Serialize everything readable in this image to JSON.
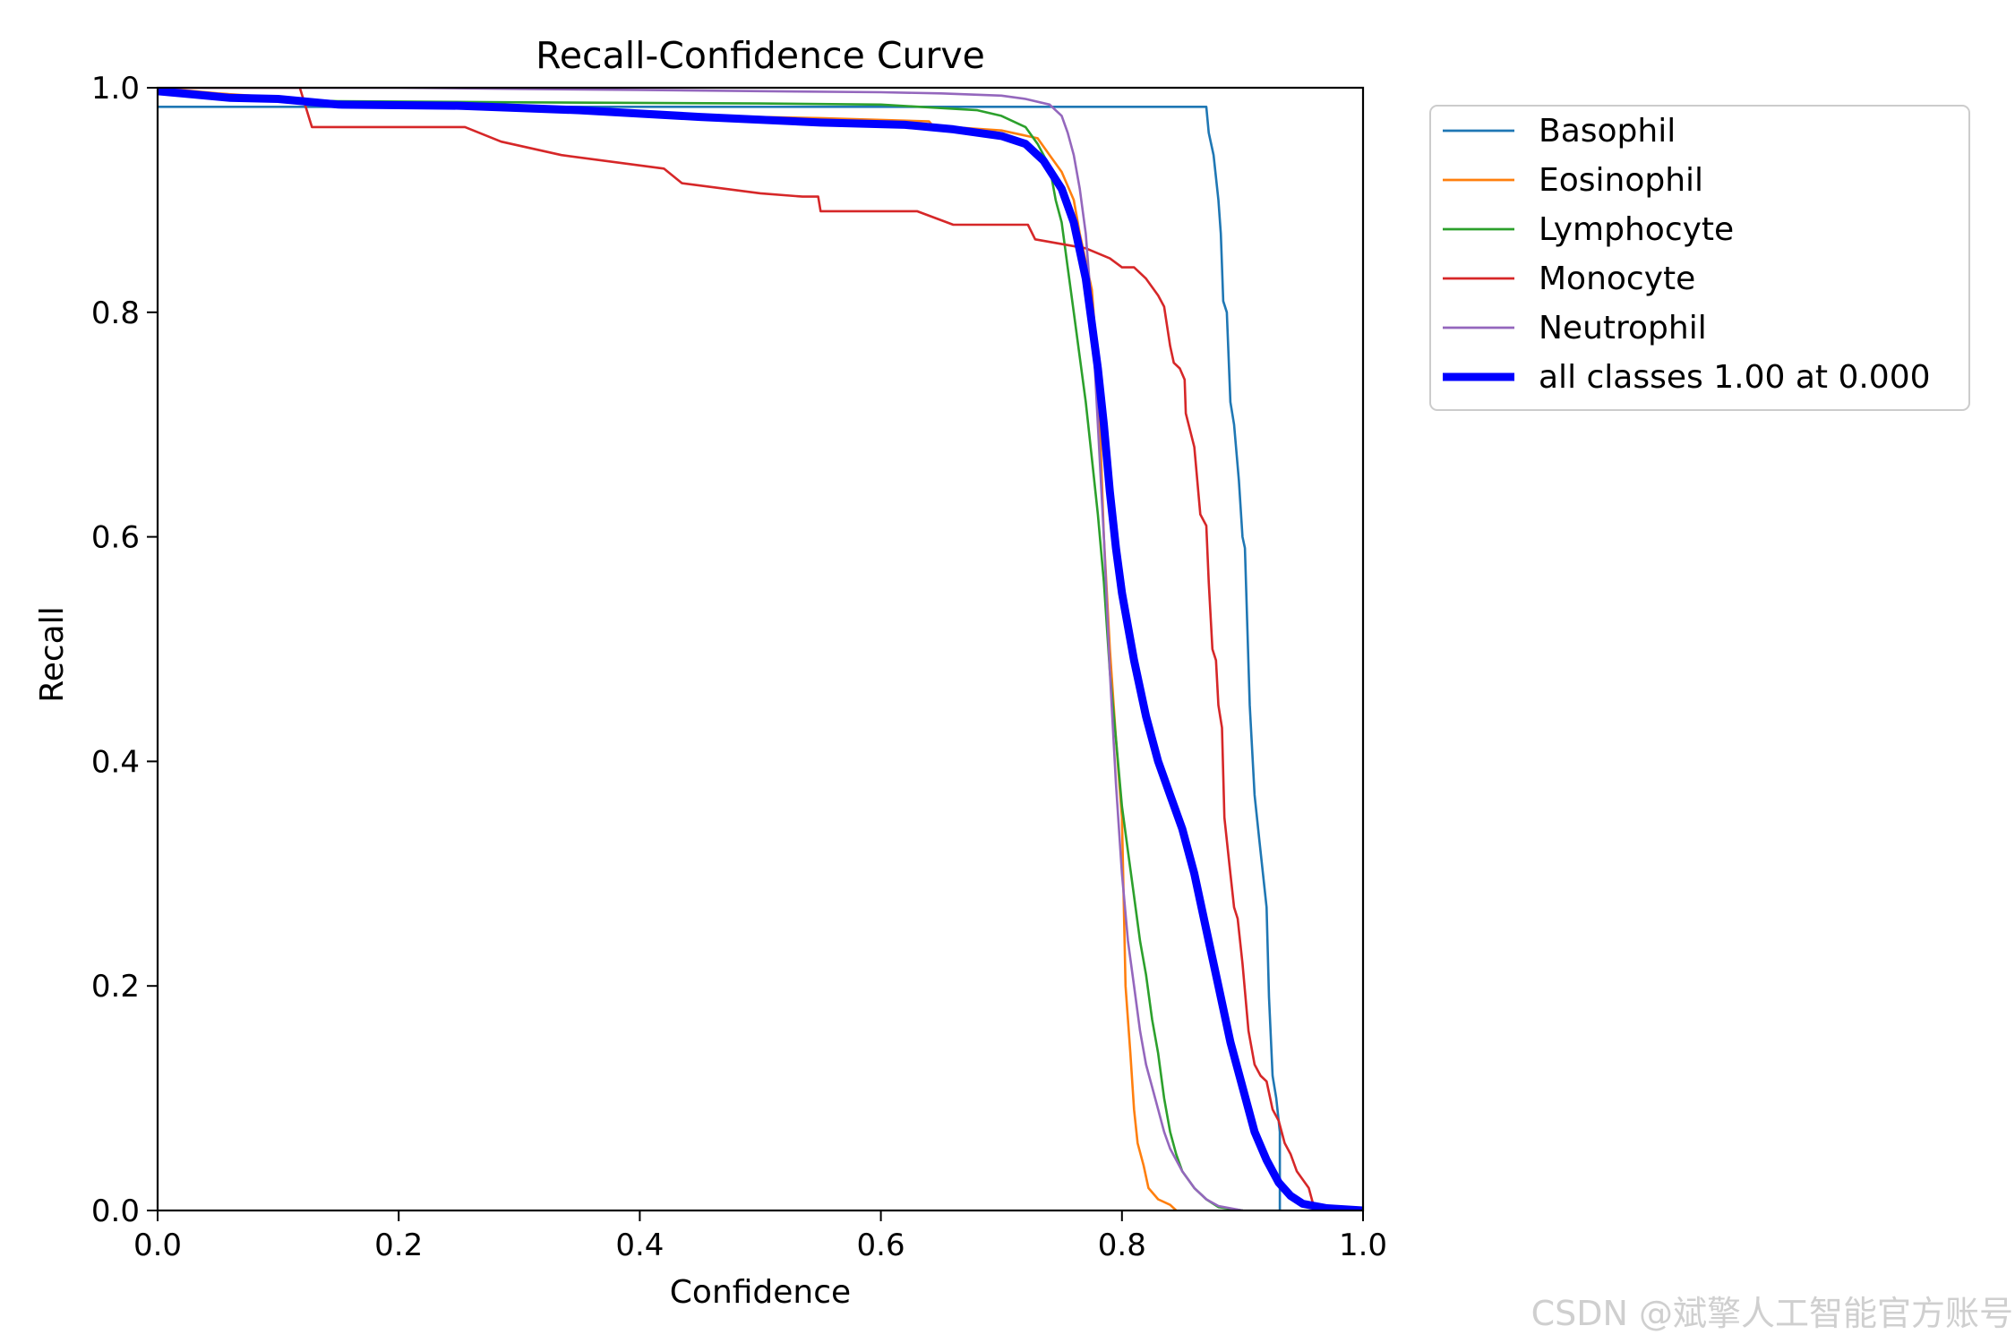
{
  "chart_data": {
    "type": "line",
    "title": "Recall-Confidence Curve",
    "xlabel": "Confidence",
    "ylabel": "Recall",
    "xlim": [
      0.0,
      1.0
    ],
    "ylim": [
      0.0,
      1.0
    ],
    "xticks": [
      "0.0",
      "0.2",
      "0.4",
      "0.6",
      "0.8",
      "1.0"
    ],
    "yticks": [
      "0.0",
      "0.2",
      "0.4",
      "0.6",
      "0.8",
      "1.0"
    ],
    "grid": false,
    "legend_position": "outside-top-right",
    "series": [
      {
        "name": "Basophil",
        "color": "#1f77b4",
        "points": [
          [
            0.0,
            0.983
          ],
          [
            0.87,
            0.983
          ],
          [
            0.872,
            0.96
          ],
          [
            0.876,
            0.94
          ],
          [
            0.88,
            0.9
          ],
          [
            0.882,
            0.87
          ],
          [
            0.884,
            0.81
          ],
          [
            0.887,
            0.8
          ],
          [
            0.89,
            0.72
          ],
          [
            0.893,
            0.7
          ],
          [
            0.897,
            0.65
          ],
          [
            0.9,
            0.6
          ],
          [
            0.902,
            0.59
          ],
          [
            0.904,
            0.52
          ],
          [
            0.906,
            0.45
          ],
          [
            0.91,
            0.37
          ],
          [
            0.914,
            0.33
          ],
          [
            0.918,
            0.29
          ],
          [
            0.92,
            0.27
          ],
          [
            0.922,
            0.19
          ],
          [
            0.925,
            0.12
          ],
          [
            0.928,
            0.1
          ],
          [
            0.931,
            0.07
          ],
          [
            0.931,
            0.0
          ]
        ]
      },
      {
        "name": "Eosinophil",
        "color": "#ff7f0e",
        "points": [
          [
            0.0,
            1.0
          ],
          [
            0.05,
            0.995
          ],
          [
            0.12,
            0.99
          ],
          [
            0.15,
            0.985
          ],
          [
            0.3,
            0.982
          ],
          [
            0.45,
            0.975
          ],
          [
            0.55,
            0.973
          ],
          [
            0.64,
            0.97
          ],
          [
            0.643,
            0.966
          ],
          [
            0.7,
            0.962
          ],
          [
            0.73,
            0.955
          ],
          [
            0.74,
            0.94
          ],
          [
            0.75,
            0.925
          ],
          [
            0.76,
            0.9
          ],
          [
            0.765,
            0.87
          ],
          [
            0.775,
            0.82
          ],
          [
            0.78,
            0.75
          ],
          [
            0.785,
            0.6
          ],
          [
            0.79,
            0.5
          ],
          [
            0.795,
            0.42
          ],
          [
            0.8,
            0.35
          ],
          [
            0.803,
            0.2
          ],
          [
            0.807,
            0.14
          ],
          [
            0.81,
            0.09
          ],
          [
            0.813,
            0.06
          ],
          [
            0.818,
            0.04
          ],
          [
            0.822,
            0.02
          ],
          [
            0.83,
            0.01
          ],
          [
            0.84,
            0.005
          ],
          [
            0.845,
            0.0
          ]
        ]
      },
      {
        "name": "Lymphocyte",
        "color": "#2ca02c",
        "points": [
          [
            0.0,
            1.0
          ],
          [
            0.04,
            0.995
          ],
          [
            0.08,
            0.99
          ],
          [
            0.15,
            0.988
          ],
          [
            0.3,
            0.987
          ],
          [
            0.5,
            0.986
          ],
          [
            0.6,
            0.985
          ],
          [
            0.68,
            0.98
          ],
          [
            0.7,
            0.975
          ],
          [
            0.72,
            0.965
          ],
          [
            0.73,
            0.95
          ],
          [
            0.74,
            0.93
          ],
          [
            0.745,
            0.9
          ],
          [
            0.75,
            0.88
          ],
          [
            0.755,
            0.84
          ],
          [
            0.76,
            0.8
          ],
          [
            0.765,
            0.76
          ],
          [
            0.77,
            0.72
          ],
          [
            0.775,
            0.67
          ],
          [
            0.78,
            0.62
          ],
          [
            0.785,
            0.56
          ],
          [
            0.79,
            0.48
          ],
          [
            0.795,
            0.42
          ],
          [
            0.8,
            0.36
          ],
          [
            0.805,
            0.32
          ],
          [
            0.81,
            0.28
          ],
          [
            0.815,
            0.24
          ],
          [
            0.82,
            0.21
          ],
          [
            0.825,
            0.17
          ],
          [
            0.83,
            0.14
          ],
          [
            0.835,
            0.1
          ],
          [
            0.84,
            0.07
          ],
          [
            0.845,
            0.05
          ],
          [
            0.85,
            0.035
          ],
          [
            0.86,
            0.02
          ],
          [
            0.87,
            0.01
          ],
          [
            0.88,
            0.003
          ],
          [
            0.9,
            0.0
          ]
        ]
      },
      {
        "name": "Monocyte",
        "color": "#d62728",
        "points": [
          [
            0.0,
            1.0
          ],
          [
            0.118,
            1.0
          ],
          [
            0.128,
            0.965
          ],
          [
            0.255,
            0.965
          ],
          [
            0.285,
            0.952
          ],
          [
            0.335,
            0.94
          ],
          [
            0.42,
            0.928
          ],
          [
            0.435,
            0.915
          ],
          [
            0.5,
            0.906
          ],
          [
            0.535,
            0.903
          ],
          [
            0.548,
            0.903
          ],
          [
            0.55,
            0.89
          ],
          [
            0.63,
            0.89
          ],
          [
            0.66,
            0.878
          ],
          [
            0.722,
            0.878
          ],
          [
            0.728,
            0.865
          ],
          [
            0.77,
            0.857
          ],
          [
            0.79,
            0.848
          ],
          [
            0.8,
            0.84
          ],
          [
            0.81,
            0.84
          ],
          [
            0.82,
            0.83
          ],
          [
            0.83,
            0.815
          ],
          [
            0.835,
            0.805
          ],
          [
            0.84,
            0.77
          ],
          [
            0.843,
            0.755
          ],
          [
            0.848,
            0.75
          ],
          [
            0.852,
            0.74
          ],
          [
            0.853,
            0.71
          ],
          [
            0.86,
            0.68
          ],
          [
            0.865,
            0.62
          ],
          [
            0.87,
            0.61
          ],
          [
            0.872,
            0.56
          ],
          [
            0.875,
            0.5
          ],
          [
            0.878,
            0.49
          ],
          [
            0.88,
            0.45
          ],
          [
            0.883,
            0.43
          ],
          [
            0.885,
            0.35
          ],
          [
            0.888,
            0.32
          ],
          [
            0.89,
            0.3
          ],
          [
            0.893,
            0.27
          ],
          [
            0.896,
            0.26
          ],
          [
            0.898,
            0.24
          ],
          [
            0.9,
            0.22
          ],
          [
            0.905,
            0.16
          ],
          [
            0.91,
            0.13
          ],
          [
            0.915,
            0.12
          ],
          [
            0.92,
            0.115
          ],
          [
            0.925,
            0.09
          ],
          [
            0.93,
            0.08
          ],
          [
            0.935,
            0.06
          ],
          [
            0.94,
            0.05
          ],
          [
            0.945,
            0.035
          ],
          [
            0.955,
            0.02
          ],
          [
            0.96,
            0.0
          ]
        ]
      },
      {
        "name": "Neutrophil",
        "color": "#9467bd",
        "points": [
          [
            0.0,
            1.0
          ],
          [
            0.2,
            1.0
          ],
          [
            0.3,
            0.999
          ],
          [
            0.4,
            0.998
          ],
          [
            0.5,
            0.997
          ],
          [
            0.6,
            0.996
          ],
          [
            0.65,
            0.995
          ],
          [
            0.7,
            0.993
          ],
          [
            0.72,
            0.99
          ],
          [
            0.74,
            0.985
          ],
          [
            0.75,
            0.975
          ],
          [
            0.755,
            0.96
          ],
          [
            0.76,
            0.94
          ],
          [
            0.765,
            0.91
          ],
          [
            0.77,
            0.87
          ],
          [
            0.775,
            0.8
          ],
          [
            0.78,
            0.7
          ],
          [
            0.785,
            0.6
          ],
          [
            0.79,
            0.48
          ],
          [
            0.795,
            0.38
          ],
          [
            0.8,
            0.3
          ],
          [
            0.805,
            0.24
          ],
          [
            0.81,
            0.2
          ],
          [
            0.815,
            0.16
          ],
          [
            0.82,
            0.13
          ],
          [
            0.825,
            0.11
          ],
          [
            0.83,
            0.09
          ],
          [
            0.835,
            0.07
          ],
          [
            0.84,
            0.055
          ],
          [
            0.845,
            0.045
          ],
          [
            0.85,
            0.035
          ],
          [
            0.86,
            0.02
          ],
          [
            0.87,
            0.01
          ],
          [
            0.88,
            0.004
          ],
          [
            0.9,
            0.0
          ]
        ]
      },
      {
        "name": "all classes 1.00 at 0.000",
        "color": "#0000ff",
        "bold": true,
        "points": [
          [
            0.0,
            0.997
          ],
          [
            0.03,
            0.994
          ],
          [
            0.06,
            0.991
          ],
          [
            0.1,
            0.99
          ],
          [
            0.15,
            0.985
          ],
          [
            0.25,
            0.984
          ],
          [
            0.35,
            0.98
          ],
          [
            0.45,
            0.974
          ],
          [
            0.55,
            0.969
          ],
          [
            0.62,
            0.967
          ],
          [
            0.66,
            0.963
          ],
          [
            0.7,
            0.957
          ],
          [
            0.72,
            0.95
          ],
          [
            0.735,
            0.935
          ],
          [
            0.75,
            0.91
          ],
          [
            0.76,
            0.88
          ],
          [
            0.77,
            0.83
          ],
          [
            0.775,
            0.79
          ],
          [
            0.78,
            0.75
          ],
          [
            0.785,
            0.7
          ],
          [
            0.79,
            0.64
          ],
          [
            0.795,
            0.59
          ],
          [
            0.8,
            0.55
          ],
          [
            0.81,
            0.49
          ],
          [
            0.82,
            0.44
          ],
          [
            0.83,
            0.4
          ],
          [
            0.84,
            0.37
          ],
          [
            0.85,
            0.34
          ],
          [
            0.86,
            0.3
          ],
          [
            0.87,
            0.25
          ],
          [
            0.88,
            0.2
          ],
          [
            0.89,
            0.15
          ],
          [
            0.9,
            0.11
          ],
          [
            0.91,
            0.07
          ],
          [
            0.92,
            0.045
          ],
          [
            0.93,
            0.025
          ],
          [
            0.94,
            0.013
          ],
          [
            0.95,
            0.006
          ],
          [
            0.97,
            0.002
          ],
          [
            1.0,
            0.0
          ]
        ]
      }
    ]
  },
  "watermark": "CSDN @斌擎人工智能官方账号"
}
